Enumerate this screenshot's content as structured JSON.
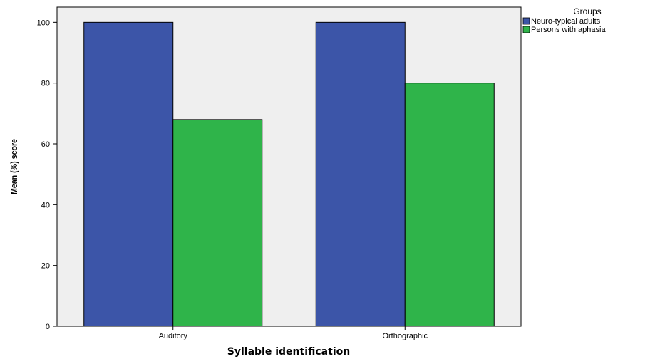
{
  "chart_data": {
    "type": "bar",
    "title": "",
    "xlabel": "Syllable identification",
    "ylabel": "Mean (%) score",
    "categories": [
      "Auditory",
      "Orthographic"
    ],
    "series": [
      {
        "name": "Neuro-typical adults",
        "values": [
          100,
          100
        ],
        "color": "#3c55a8"
      },
      {
        "name": "Persons with aphasia",
        "values": [
          68,
          80
        ],
        "color": "#2fb44a"
      }
    ],
    "ylim": [
      0,
      105
    ],
    "yticks": [
      0,
      20,
      40,
      60,
      80,
      100
    ],
    "legend": {
      "title": "Groups",
      "position": "top-right"
    },
    "grid": false,
    "plot_background": "#efefef"
  }
}
